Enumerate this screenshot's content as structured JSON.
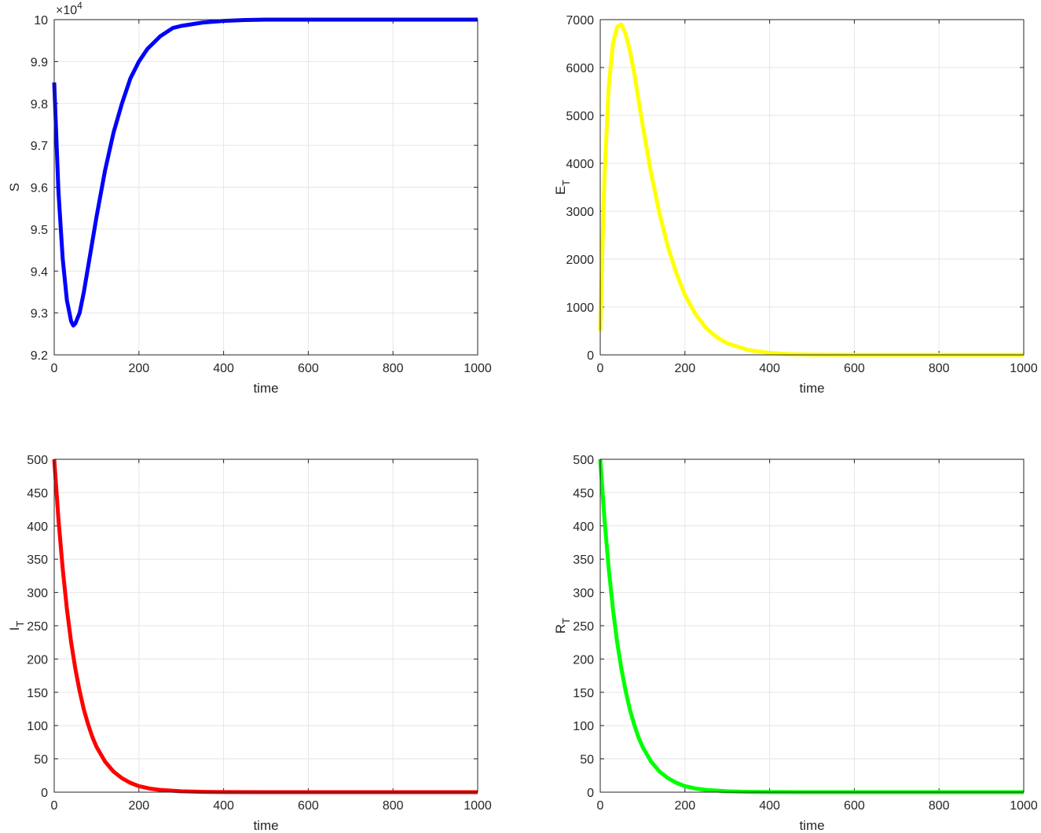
{
  "chart_data": [
    {
      "type": "line",
      "xlabel": "time",
      "ylabel": "S",
      "ylabel_sub": "",
      "exponent_label": "×10",
      "exponent_power": "4",
      "xlim": [
        0,
        1000
      ],
      "ylim": [
        9.2,
        10
      ],
      "xticks": [
        "0",
        "200",
        "400",
        "600",
        "800",
        "1000"
      ],
      "yticks": [
        "9.2",
        "9.3",
        "9.4",
        "9.5",
        "9.6",
        "9.7",
        "9.8",
        "9.9",
        "10"
      ],
      "grid": true,
      "color": "#0000ff",
      "x": [
        0,
        10,
        20,
        30,
        40,
        45,
        50,
        60,
        70,
        80,
        100,
        120,
        140,
        160,
        180,
        200,
        220,
        250,
        280,
        300,
        350,
        400,
        450,
        500,
        600,
        700,
        800,
        900,
        1000
      ],
      "y": [
        9.85,
        9.59,
        9.43,
        9.33,
        9.28,
        9.27,
        9.275,
        9.3,
        9.35,
        9.41,
        9.53,
        9.64,
        9.73,
        9.8,
        9.86,
        9.9,
        9.93,
        9.96,
        9.98,
        9.985,
        9.993,
        9.997,
        9.999,
        10,
        10,
        10,
        10,
        10,
        10
      ]
    },
    {
      "type": "line",
      "xlabel": "time",
      "ylabel": "E",
      "ylabel_sub": "T",
      "xlim": [
        0,
        1000
      ],
      "ylim": [
        0,
        7000
      ],
      "xticks": [
        "0",
        "200",
        "400",
        "600",
        "800",
        "1000"
      ],
      "yticks": [
        "0",
        "1000",
        "2000",
        "3000",
        "4000",
        "5000",
        "6000",
        "7000"
      ],
      "grid": true,
      "color": "#ffff00",
      "x": [
        0,
        5,
        10,
        20,
        30,
        40,
        50,
        60,
        70,
        80,
        100,
        120,
        140,
        160,
        180,
        200,
        225,
        250,
        275,
        300,
        350,
        400,
        450,
        500,
        600,
        700,
        800,
        900,
        1000
      ],
      "y": [
        500,
        2200,
        3700,
        5600,
        6500,
        6850,
        6900,
        6700,
        6350,
        5900,
        4800,
        3800,
        2950,
        2250,
        1700,
        1250,
        850,
        560,
        370,
        240,
        100,
        40,
        15,
        6,
        1,
        0,
        0,
        0,
        0
      ]
    },
    {
      "type": "line",
      "xlabel": "time",
      "ylabel": "I",
      "ylabel_sub": "T",
      "xlim": [
        0,
        1000
      ],
      "ylim": [
        0,
        500
      ],
      "xticks": [
        "0",
        "200",
        "400",
        "600",
        "800",
        "1000"
      ],
      "yticks": [
        "0",
        "50",
        "100",
        "150",
        "200",
        "250",
        "300",
        "350",
        "400",
        "450",
        "500"
      ],
      "grid": true,
      "color": "#ff0000",
      "x": [
        0,
        10,
        20,
        30,
        40,
        50,
        60,
        70,
        80,
        90,
        100,
        120,
        140,
        160,
        180,
        200,
        225,
        250,
        300,
        350,
        400,
        500,
        600,
        800,
        1000
      ],
      "y": [
        500,
        410,
        336,
        275,
        225,
        185,
        152,
        124,
        102,
        83,
        68,
        46,
        31,
        21,
        14,
        9,
        5.5,
        3.4,
        1.3,
        0.5,
        0.2,
        0,
        0,
        0,
        0
      ]
    },
    {
      "type": "line",
      "xlabel": "time",
      "ylabel": "R",
      "ylabel_sub": "T",
      "xlim": [
        0,
        1000
      ],
      "ylim": [
        0,
        500
      ],
      "xticks": [
        "0",
        "200",
        "400",
        "600",
        "800",
        "1000"
      ],
      "yticks": [
        "0",
        "50",
        "100",
        "150",
        "200",
        "250",
        "300",
        "350",
        "400",
        "450",
        "500"
      ],
      "grid": true,
      "color": "#00ff00",
      "x": [
        0,
        10,
        20,
        30,
        40,
        50,
        60,
        70,
        80,
        90,
        100,
        120,
        140,
        160,
        180,
        200,
        225,
        250,
        300,
        350,
        400,
        500,
        600,
        800,
        1000
      ],
      "y": [
        500,
        410,
        336,
        275,
        225,
        185,
        152,
        124,
        102,
        83,
        68,
        46,
        31,
        21,
        14,
        9,
        5.5,
        3.4,
        1.3,
        0.5,
        0.2,
        0,
        0,
        0,
        0
      ]
    }
  ]
}
